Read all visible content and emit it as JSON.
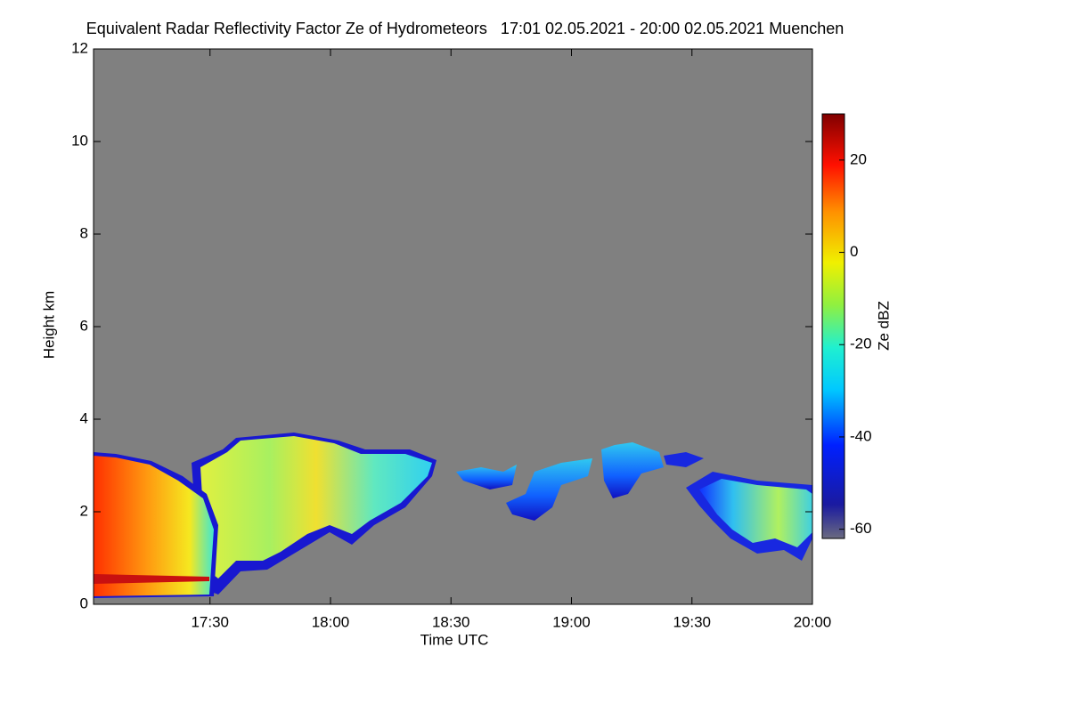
{
  "chart_data": {
    "type": "heatmap",
    "title": "Equivalent Radar Reflectivity Factor Ze of Hydrometeors   17:01 02.05.2021 - 20:00 02.05.2021 Muenchen",
    "x_label": "Time UTC",
    "y_label": "Height km",
    "xlim": [
      "17:01",
      "20:00"
    ],
    "xticks": [
      "17:30",
      "18:00",
      "18:30",
      "19:00",
      "19:30",
      "20:00"
    ],
    "ylim": [
      0,
      12
    ],
    "yticks": [
      0,
      2,
      4,
      6,
      8,
      10,
      12
    ],
    "colorbar": {
      "label": "Ze dBZ",
      "lim": [
        -62,
        30
      ],
      "ticks": [
        -60,
        -40,
        -20,
        0,
        20
      ]
    },
    "background_color": "#808080"
  }
}
